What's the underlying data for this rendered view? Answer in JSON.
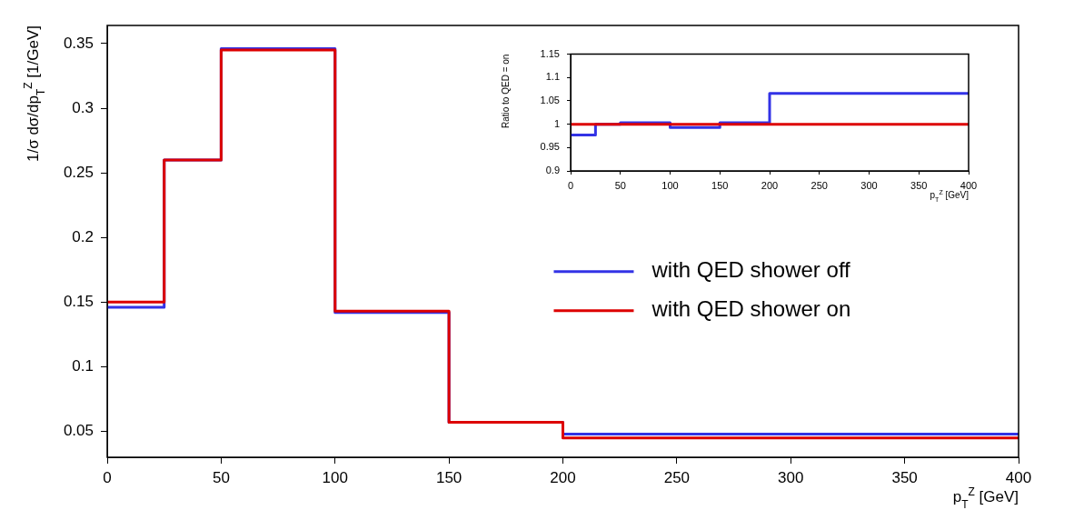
{
  "chart_data": [
    {
      "type": "histogram",
      "xlabel": "p$_{T}$$^{Z}$ [GeV]",
      "ylabel": "1/σ dσ/dp$_{T}$$^{Z}$ [1/GeV]",
      "bins": [
        0,
        25,
        50,
        100,
        150,
        200,
        400
      ],
      "series": [
        {
          "name": "with QED shower off",
          "color": "#3333e6",
          "values": [
            0.146,
            0.26,
            0.346,
            0.142,
            0.057,
            0.048
          ]
        },
        {
          "name": "with QED shower on",
          "color": "#dd0000",
          "values": [
            0.15,
            0.26,
            0.345,
            0.143,
            0.057,
            0.045
          ]
        }
      ],
      "xlim": [
        0,
        400
      ],
      "xticks": [
        0,
        50,
        100,
        150,
        200,
        250,
        300,
        350,
        400
      ],
      "ylim": [
        0.03,
        0.364
      ],
      "yticks": [
        0.05,
        0.1,
        0.15,
        0.2,
        0.25,
        0.3,
        0.35
      ],
      "legend": "right"
    },
    {
      "type": "histogram",
      "xlabel": "p$_{T}$$^{Z}$ [GeV]",
      "ylabel": "Ratio to QED = on",
      "bins": [
        0,
        25,
        50,
        100,
        150,
        200,
        400
      ],
      "series": [
        {
          "color": "#3333e6",
          "values": [
            0.977,
            1.0,
            1.003,
            0.993,
            1.003,
            1.066
          ]
        },
        {
          "color": "#dd0000",
          "values": [
            1,
            1,
            1,
            1,
            1,
            1
          ]
        }
      ],
      "xlim": [
        0,
        400
      ],
      "xticks": [
        0,
        50,
        100,
        150,
        200,
        250,
        300,
        350,
        400
      ],
      "ylim": [
        0.9,
        1.15
      ],
      "yticks": [
        0.9,
        0.95,
        1,
        1.05,
        1.1,
        1.15
      ]
    }
  ]
}
